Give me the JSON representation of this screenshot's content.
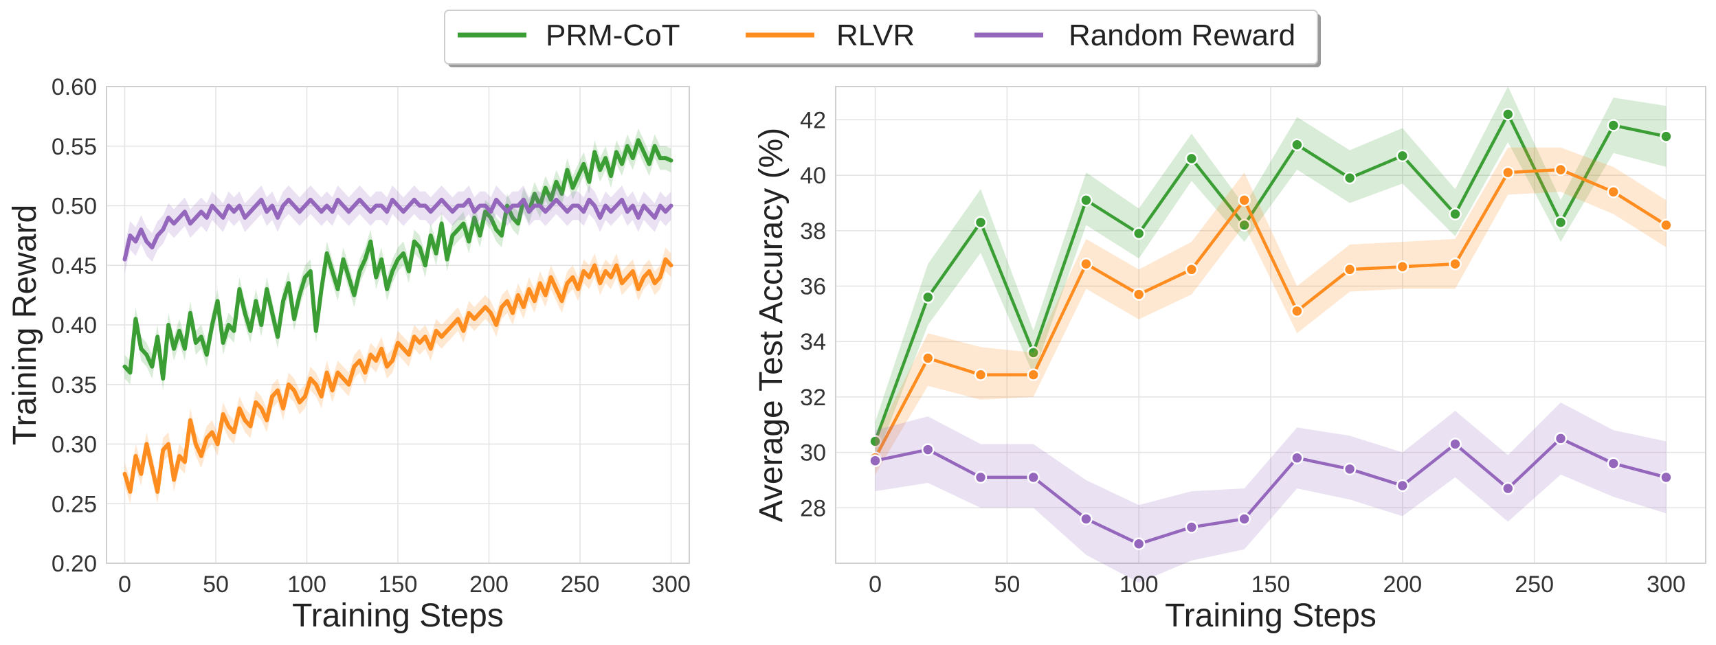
{
  "legend": {
    "items": [
      {
        "label": "PRM-CoT",
        "color": "#3a9e35"
      },
      {
        "label": "RLVR",
        "color": "#ff8c1f"
      },
      {
        "label": "Random Reward",
        "color": "#9467bd"
      }
    ]
  },
  "chart_data": [
    {
      "type": "line",
      "title": "",
      "xlabel": "Training Steps",
      "ylabel": "Training Reward",
      "xlim": [
        -10,
        310
      ],
      "ylim": [
        0.2,
        0.6
      ],
      "xticks": [
        "0",
        "50",
        "100",
        "150",
        "200",
        "250",
        "300"
      ],
      "yticks": [
        "0.20",
        "0.25",
        "0.30",
        "0.35",
        "0.40",
        "0.45",
        "0.50",
        "0.55",
        "0.60"
      ],
      "grid": true,
      "x_range": [
        0,
        300
      ],
      "series": [
        {
          "name": "PRM-CoT",
          "color": "#3a9e35",
          "band": 0.01,
          "values": [
            0.365,
            0.36,
            0.405,
            0.38,
            0.375,
            0.365,
            0.39,
            0.355,
            0.4,
            0.38,
            0.395,
            0.38,
            0.41,
            0.385,
            0.39,
            0.375,
            0.4,
            0.42,
            0.385,
            0.4,
            0.395,
            0.43,
            0.41,
            0.395,
            0.42,
            0.4,
            0.43,
            0.41,
            0.39,
            0.42,
            0.435,
            0.405,
            0.425,
            0.44,
            0.445,
            0.395,
            0.43,
            0.46,
            0.445,
            0.43,
            0.455,
            0.44,
            0.425,
            0.445,
            0.455,
            0.47,
            0.44,
            0.455,
            0.43,
            0.445,
            0.455,
            0.46,
            0.445,
            0.47,
            0.465,
            0.45,
            0.475,
            0.46,
            0.485,
            0.455,
            0.475,
            0.48,
            0.485,
            0.47,
            0.49,
            0.475,
            0.495,
            0.49,
            0.48,
            0.475,
            0.5,
            0.49,
            0.485,
            0.505,
            0.495,
            0.51,
            0.5,
            0.515,
            0.505,
            0.52,
            0.51,
            0.53,
            0.515,
            0.525,
            0.535,
            0.52,
            0.545,
            0.53,
            0.54,
            0.525,
            0.545,
            0.535,
            0.55,
            0.54,
            0.555,
            0.545,
            0.535,
            0.55,
            0.54,
            0.54,
            0.538
          ]
        },
        {
          "name": "RLVR",
          "color": "#ff8c1f",
          "band": 0.01,
          "values": [
            0.275,
            0.26,
            0.29,
            0.275,
            0.3,
            0.28,
            0.26,
            0.295,
            0.3,
            0.27,
            0.29,
            0.285,
            0.32,
            0.3,
            0.29,
            0.305,
            0.31,
            0.3,
            0.325,
            0.315,
            0.31,
            0.33,
            0.32,
            0.315,
            0.335,
            0.33,
            0.32,
            0.34,
            0.345,
            0.33,
            0.35,
            0.345,
            0.335,
            0.34,
            0.355,
            0.35,
            0.34,
            0.36,
            0.345,
            0.36,
            0.355,
            0.35,
            0.365,
            0.37,
            0.36,
            0.375,
            0.37,
            0.38,
            0.365,
            0.37,
            0.385,
            0.38,
            0.375,
            0.39,
            0.385,
            0.39,
            0.38,
            0.395,
            0.39,
            0.395,
            0.4,
            0.405,
            0.395,
            0.41,
            0.405,
            0.41,
            0.415,
            0.41,
            0.4,
            0.415,
            0.42,
            0.41,
            0.425,
            0.415,
            0.43,
            0.42,
            0.435,
            0.425,
            0.44,
            0.43,
            0.42,
            0.435,
            0.44,
            0.43,
            0.445,
            0.44,
            0.45,
            0.435,
            0.445,
            0.44,
            0.45,
            0.435,
            0.44,
            0.445,
            0.43,
            0.44,
            0.445,
            0.435,
            0.44,
            0.455,
            0.45
          ]
        },
        {
          "name": "Random Reward",
          "color": "#9467bd",
          "band": 0.012,
          "values": [
            0.455,
            0.475,
            0.47,
            0.48,
            0.47,
            0.465,
            0.475,
            0.48,
            0.49,
            0.485,
            0.49,
            0.495,
            0.485,
            0.49,
            0.495,
            0.49,
            0.5,
            0.495,
            0.49,
            0.5,
            0.495,
            0.5,
            0.49,
            0.495,
            0.5,
            0.505,
            0.495,
            0.5,
            0.49,
            0.5,
            0.505,
            0.5,
            0.495,
            0.5,
            0.505,
            0.5,
            0.495,
            0.5,
            0.495,
            0.505,
            0.5,
            0.495,
            0.5,
            0.505,
            0.5,
            0.495,
            0.5,
            0.5,
            0.495,
            0.505,
            0.5,
            0.495,
            0.5,
            0.505,
            0.5,
            0.5,
            0.495,
            0.5,
            0.505,
            0.5,
            0.495,
            0.5,
            0.5,
            0.505,
            0.495,
            0.5,
            0.5,
            0.495,
            0.505,
            0.5,
            0.495,
            0.5,
            0.5,
            0.505,
            0.495,
            0.5,
            0.5,
            0.495,
            0.5,
            0.505,
            0.5,
            0.495,
            0.5,
            0.5,
            0.495,
            0.505,
            0.5,
            0.49,
            0.5,
            0.495,
            0.5,
            0.505,
            0.495,
            0.5,
            0.49,
            0.5,
            0.495,
            0.49,
            0.5,
            0.495,
            0.5
          ]
        }
      ]
    },
    {
      "type": "line",
      "title": "",
      "xlabel": "Training Steps",
      "ylabel": "Average Test Accuracy (%)",
      "xlim": [
        -15,
        315
      ],
      "ylim": [
        26.0,
        43.2
      ],
      "xticks": [
        "0",
        "50",
        "100",
        "150",
        "200",
        "250",
        "300"
      ],
      "yticks": [
        "28",
        "30",
        "32",
        "34",
        "36",
        "38",
        "40",
        "42"
      ],
      "grid": true,
      "x": [
        0,
        20,
        40,
        60,
        80,
        100,
        120,
        140,
        160,
        180,
        200,
        220,
        240,
        260,
        280,
        300
      ],
      "series": [
        {
          "name": "PRM-CoT",
          "color": "#3a9e35",
          "values": [
            30.4,
            35.6,
            38.3,
            33.6,
            39.1,
            37.9,
            40.6,
            38.2,
            41.1,
            39.9,
            40.7,
            38.6,
            42.2,
            38.3,
            41.8,
            41.4
          ],
          "lower": [
            29.7,
            34.6,
            37.2,
            32.8,
            38.2,
            37.0,
            39.8,
            37.6,
            40.2,
            39.0,
            39.7,
            37.8,
            41.2,
            37.6,
            40.8,
            40.3
          ],
          "upper": [
            31.1,
            36.8,
            39.5,
            34.4,
            40.1,
            38.8,
            41.5,
            38.9,
            42.1,
            40.9,
            41.7,
            39.5,
            43.2,
            39.1,
            42.8,
            42.5
          ]
        },
        {
          "name": "RLVR",
          "color": "#ff8c1f",
          "values": [
            29.8,
            33.4,
            32.8,
            32.8,
            36.8,
            35.7,
            36.6,
            39.1,
            35.1,
            36.6,
            36.7,
            36.8,
            40.1,
            40.2,
            39.4,
            38.2
          ],
          "lower": [
            29.2,
            32.4,
            31.9,
            32.0,
            35.9,
            34.8,
            35.7,
            38.2,
            34.3,
            35.8,
            35.9,
            35.9,
            39.3,
            39.4,
            38.6,
            37.4
          ],
          "upper": [
            30.5,
            34.3,
            33.8,
            33.6,
            37.7,
            36.6,
            37.6,
            40.1,
            36.0,
            37.5,
            37.6,
            37.7,
            41.0,
            41.0,
            40.3,
            39.1
          ]
        },
        {
          "name": "Random Reward",
          "color": "#9467bd",
          "values": [
            29.7,
            30.1,
            29.1,
            29.1,
            27.6,
            26.7,
            27.3,
            27.6,
            29.8,
            29.4,
            28.8,
            30.3,
            28.7,
            30.5,
            29.6,
            29.1
          ],
          "lower": [
            28.6,
            28.9,
            28.0,
            28.0,
            26.3,
            25.3,
            26.1,
            26.5,
            28.7,
            28.3,
            27.7,
            29.1,
            27.5,
            29.2,
            28.4,
            27.8
          ],
          "upper": [
            30.8,
            31.3,
            30.3,
            30.3,
            29.0,
            28.1,
            28.6,
            28.7,
            30.9,
            30.6,
            30.0,
            31.5,
            29.9,
            31.8,
            30.8,
            30.4
          ]
        }
      ]
    }
  ]
}
